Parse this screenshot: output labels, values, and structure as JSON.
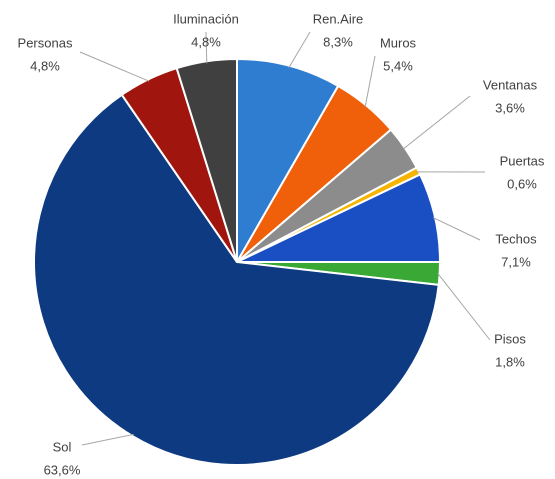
{
  "chart_data": {
    "type": "pie",
    "categories": [
      "Ren.Aire",
      "Muros",
      "Ventanas",
      "Puertas",
      "Techos",
      "Pisos",
      "Sol",
      "Personas",
      "Iluminación"
    ],
    "values": [
      8.3,
      5.4,
      3.6,
      0.6,
      7.1,
      1.8,
      63.6,
      4.8,
      4.8
    ],
    "value_labels": [
      "8,3%",
      "5,4%",
      "3,6%",
      "0,6%",
      "7,1%",
      "1,8%",
      "63,6%",
      "4,8%",
      "4,8%"
    ],
    "colors": [
      "#2e7dd1",
      "#f0600a",
      "#8c8c8c",
      "#f5b400",
      "#1a4fc4",
      "#3aa835",
      "#0d3a80",
      "#a0160f",
      "#404040"
    ]
  }
}
